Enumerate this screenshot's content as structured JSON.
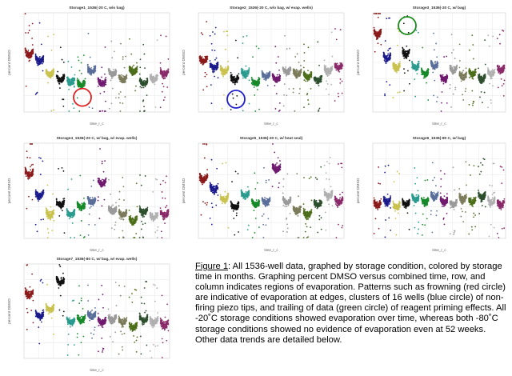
{
  "caption": {
    "label": "Figure 1",
    "text": ":  All 1536-well data, graphed by storage condition, colored by storage time in months.  Graphing percent DMSO versus combined time, row, and column indicates regions of evaporation.  Patterns such as frowning (red circle) are indicative of evaporation at edges, clusters of 16 wells (blue circle) of non-firing piezo tips, and trailing of data (green circle) of reagent priming effects.  All -20˚C storage conditions showed evaporation over time, whereas both -80˚C storage conditions showed no evidence of evaporation even at 52 weeks.  Other data trends are detailed below."
  },
  "colors": {
    "series": [
      "#8b1a1a",
      "#1a1a8c",
      "#c9c24e",
      "#111111",
      "#2a9b8e",
      "#178a2a",
      "#5a6e9a",
      "#6f1a6f",
      "#9a9a9a",
      "#7c7c5c",
      "#4d6e1a",
      "#2d4f2d",
      "#b0b0b0",
      "#8a2a6a"
    ],
    "annotation_red": "#e02020",
    "annotation_blue": "#1f1fcc",
    "annotation_green": "#1a8a1a"
  },
  "chart_data": [
    {
      "type": "scatter",
      "title": "Storage1_1536(-20 C, w/o bag)",
      "xlabel": "time_r_c",
      "ylabel": "percent DMSO",
      "grid": true,
      "cluster_levels": [
        0.55,
        0.5,
        0.4,
        0.36,
        0.34,
        0.32,
        0.42,
        0.33,
        0.4,
        0.36,
        0.42,
        0.33,
        0.36,
        0.4
      ],
      "annotation": {
        "kind": "circle",
        "color": "red",
        "at_cluster": 5
      }
    },
    {
      "type": "scatter",
      "title": "Storage2_1536(-20 C, w/o bag, w/ evap. wells)",
      "xlabel": "time_r_c",
      "ylabel": "percent DMSO",
      "grid": true,
      "cluster_levels": [
        0.5,
        0.45,
        0.42,
        0.36,
        0.4,
        0.33,
        0.38,
        0.36,
        0.42,
        0.4,
        0.38,
        0.35,
        0.42,
        0.45
      ],
      "annotation": {
        "kind": "circle",
        "color": "blue",
        "at_cluster": 3
      }
    },
    {
      "type": "scatter",
      "title": "Storage3_1536(-20 C, w/ bag)",
      "xlabel": "time_r_c",
      "ylabel": "percent DMSO",
      "grid": true,
      "cluster_levels": [
        0.7,
        0.52,
        0.45,
        0.55,
        0.45,
        0.4,
        0.46,
        0.36,
        0.43,
        0.38,
        0.4,
        0.36,
        0.4,
        0.43
      ],
      "annotation": {
        "kind": "circle",
        "color": "green",
        "at_cluster": 3
      }
    },
    {
      "type": "scatter",
      "title": "Storage4_1536(-20 C, w/ bag, w/ evap. wells)",
      "xlabel": "time_r_c",
      "ylabel": "percent DMSO",
      "grid": true,
      "cluster_levels": [
        0.62,
        0.45,
        0.3,
        0.38,
        0.3,
        0.36,
        0.4,
        0.55,
        0.33,
        0.3,
        0.25,
        0.32,
        0.28,
        0.3
      ]
    },
    {
      "type": "scatter",
      "title": "Storage5_1536(-20 C, w/ heat seal)",
      "xlabel": "time_r_c",
      "ylabel": "percent DMSO",
      "grid": true,
      "cluster_levels": [
        0.58,
        0.5,
        0.42,
        0.36,
        0.45,
        0.38,
        0.4,
        0.66,
        0.4,
        0.33,
        0.3,
        0.38,
        0.45,
        0.4
      ]
    },
    {
      "type": "scatter",
      "title": "Storage6_1536(-80 C, w/ bag)",
      "xlabel": "time_r_c",
      "ylabel": "percent DMSO",
      "grid": true,
      "cluster_levels": [
        0.38,
        0.4,
        0.36,
        0.38,
        0.42,
        0.4,
        0.44,
        0.4,
        0.38,
        0.42,
        0.4,
        0.44,
        0.4,
        0.38
      ]
    },
    {
      "type": "scatter",
      "title": "Storage7_1536(-80 C, w/ bag, w/ evap. wells)",
      "xlabel": "time_r_c",
      "ylabel": "percent DMSO",
      "grid": true,
      "cluster_levels": [
        0.62,
        0.45,
        0.5,
        0.72,
        0.4,
        0.42,
        0.45,
        0.4,
        0.42,
        0.4,
        0.36,
        0.42,
        0.4,
        0.38
      ]
    }
  ]
}
